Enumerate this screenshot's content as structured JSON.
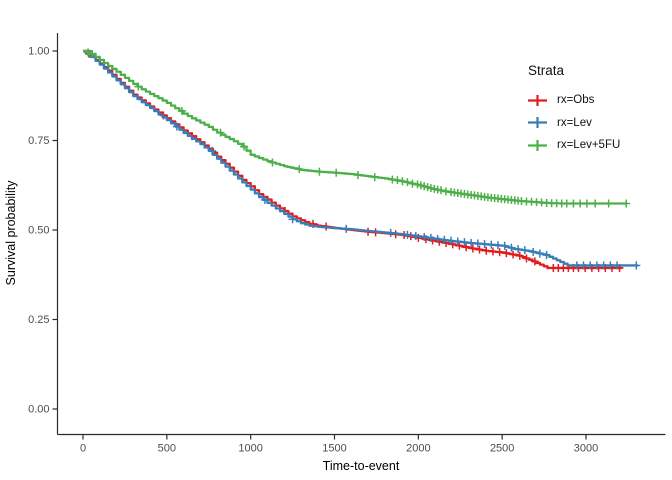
{
  "chart_data": {
    "type": "line",
    "subtype": "kaplan-meier-step",
    "title": "",
    "xlabel": "Time-to-event",
    "ylabel": "Survival probability",
    "xlim": [
      0,
      3400
    ],
    "ylim": [
      0,
      1
    ],
    "grid": false,
    "legend_position": "top-right",
    "legend_title": "Strata",
    "x_ticks": [
      0,
      500,
      1000,
      1500,
      2000,
      2500,
      3000
    ],
    "y_ticks": {
      "labels": [
        "0.00",
        "0.25",
        "0.50",
        "0.75",
        "1.00"
      ],
      "values": [
        0,
        0.25,
        0.5,
        0.75,
        1.0
      ]
    },
    "axis_color": "#2b2b2b",
    "series": [
      {
        "id": "obs",
        "name": "rx=Obs",
        "color": "#E41A1C",
        "points": [
          [
            0,
            1.0
          ],
          [
            50,
            0.985
          ],
          [
            100,
            0.965
          ],
          [
            150,
            0.945
          ],
          [
            200,
            0.922
          ],
          [
            250,
            0.9
          ],
          [
            300,
            0.878
          ],
          [
            350,
            0.862
          ],
          [
            400,
            0.845
          ],
          [
            450,
            0.828
          ],
          [
            500,
            0.812
          ],
          [
            550,
            0.795
          ],
          [
            600,
            0.778
          ],
          [
            650,
            0.762
          ],
          [
            700,
            0.745
          ],
          [
            750,
            0.727
          ],
          [
            800,
            0.705
          ],
          [
            850,
            0.685
          ],
          [
            900,
            0.663
          ],
          [
            950,
            0.64
          ],
          [
            1000,
            0.622
          ],
          [
            1050,
            0.6
          ],
          [
            1100,
            0.585
          ],
          [
            1150,
            0.568
          ],
          [
            1200,
            0.553
          ],
          [
            1250,
            0.538
          ],
          [
            1300,
            0.527
          ],
          [
            1350,
            0.517
          ],
          [
            1400,
            0.512
          ],
          [
            1500,
            0.506
          ],
          [
            1600,
            0.5
          ],
          [
            1700,
            0.495
          ],
          [
            1800,
            0.491
          ],
          [
            1900,
            0.486
          ],
          [
            2000,
            0.478
          ],
          [
            2100,
            0.469
          ],
          [
            2200,
            0.46
          ],
          [
            2300,
            0.45
          ],
          [
            2400,
            0.442
          ],
          [
            2500,
            0.437
          ],
          [
            2600,
            0.428
          ],
          [
            2660,
            0.417
          ],
          [
            2770,
            0.394
          ],
          [
            3215,
            0.394
          ]
        ],
        "censor_times": [
          35,
          480,
          650,
          1205,
          1372,
          1450,
          1700,
          1745,
          1865,
          1915,
          1955,
          2000,
          2045,
          2085,
          2125,
          2165,
          2205,
          2245,
          2285,
          2325,
          2365,
          2405,
          2445,
          2485,
          2525,
          2565,
          2605,
          2645,
          2695,
          2805,
          2835,
          2865,
          2895,
          2925,
          2955,
          2995,
          3035,
          3075,
          3115,
          3155,
          3200
        ]
      },
      {
        "id": "lev",
        "name": "rx=Lev",
        "color": "#377EB8",
        "points": [
          [
            0,
            1.0
          ],
          [
            50,
            0.983
          ],
          [
            100,
            0.962
          ],
          [
            150,
            0.94
          ],
          [
            200,
            0.918
          ],
          [
            250,
            0.896
          ],
          [
            300,
            0.874
          ],
          [
            350,
            0.857
          ],
          [
            400,
            0.841
          ],
          [
            450,
            0.823
          ],
          [
            500,
            0.807
          ],
          [
            550,
            0.789
          ],
          [
            600,
            0.771
          ],
          [
            650,
            0.755
          ],
          [
            700,
            0.74
          ],
          [
            750,
            0.721
          ],
          [
            800,
            0.699
          ],
          [
            850,
            0.677
          ],
          [
            900,
            0.655
          ],
          [
            950,
            0.633
          ],
          [
            1000,
            0.613
          ],
          [
            1050,
            0.592
          ],
          [
            1100,
            0.576
          ],
          [
            1150,
            0.56
          ],
          [
            1200,
            0.545
          ],
          [
            1250,
            0.53
          ],
          [
            1300,
            0.519
          ],
          [
            1350,
            0.512
          ],
          [
            1400,
            0.509
          ],
          [
            1500,
            0.505
          ],
          [
            1600,
            0.502
          ],
          [
            1700,
            0.497
          ],
          [
            1800,
            0.493
          ],
          [
            1900,
            0.488
          ],
          [
            2000,
            0.482
          ],
          [
            2100,
            0.475
          ],
          [
            2200,
            0.469
          ],
          [
            2300,
            0.464
          ],
          [
            2400,
            0.46
          ],
          [
            2500,
            0.456
          ],
          [
            2560,
            0.448
          ],
          [
            2660,
            0.441
          ],
          [
            2760,
            0.43
          ],
          [
            2890,
            0.401
          ],
          [
            3310,
            0.401
          ]
        ],
        "censor_times": [
          45,
          560,
          770,
          1085,
          1250,
          1570,
          1835,
          1935,
          1985,
          2035,
          2075,
          2115,
          2155,
          2195,
          2235,
          2275,
          2315,
          2355,
          2395,
          2435,
          2475,
          2515,
          2555,
          2595,
          2635,
          2685,
          2725,
          2765,
          2945,
          2985,
          3025,
          3065,
          3105,
          3145,
          3185,
          3300
        ]
      },
      {
        "id": "lev5fu",
        "name": "rx=Lev+5FU",
        "color": "#4DAF4A",
        "points": [
          [
            0,
            1.0
          ],
          [
            50,
            0.992
          ],
          [
            100,
            0.975
          ],
          [
            150,
            0.958
          ],
          [
            200,
            0.942
          ],
          [
            250,
            0.925
          ],
          [
            300,
            0.908
          ],
          [
            350,
            0.893
          ],
          [
            400,
            0.88
          ],
          [
            450,
            0.868
          ],
          [
            500,
            0.855
          ],
          [
            550,
            0.84
          ],
          [
            600,
            0.825
          ],
          [
            650,
            0.812
          ],
          [
            700,
            0.8
          ],
          [
            750,
            0.788
          ],
          [
            800,
            0.772
          ],
          [
            850,
            0.76
          ],
          [
            900,
            0.748
          ],
          [
            950,
            0.733
          ],
          [
            1000,
            0.71
          ],
          [
            1050,
            0.701
          ],
          [
            1100,
            0.692
          ],
          [
            1150,
            0.685
          ],
          [
            1200,
            0.678
          ],
          [
            1300,
            0.668
          ],
          [
            1400,
            0.663
          ],
          [
            1500,
            0.66
          ],
          [
            1600,
            0.656
          ],
          [
            1700,
            0.65
          ],
          [
            1800,
            0.644
          ],
          [
            1900,
            0.636
          ],
          [
            2000,
            0.625
          ],
          [
            2060,
            0.617
          ],
          [
            2120,
            0.611
          ],
          [
            2180,
            0.606
          ],
          [
            2240,
            0.602
          ],
          [
            2300,
            0.598
          ],
          [
            2360,
            0.594
          ],
          [
            2420,
            0.59
          ],
          [
            2480,
            0.587
          ],
          [
            2540,
            0.584
          ],
          [
            2600,
            0.581
          ],
          [
            2660,
            0.579
          ],
          [
            2720,
            0.577
          ],
          [
            2780,
            0.575
          ],
          [
            2850,
            0.574
          ],
          [
            3240,
            0.574
          ]
        ],
        "censor_times": [
          30,
          55,
          330,
          590,
          820,
          960,
          1130,
          1290,
          1410,
          1510,
          1640,
          1740,
          1845,
          1875,
          1905,
          1935,
          1965,
          1995,
          2015,
          2035,
          2055,
          2075,
          2095,
          2115,
          2135,
          2165,
          2195,
          2215,
          2235,
          2255,
          2275,
          2295,
          2315,
          2335,
          2355,
          2375,
          2395,
          2415,
          2435,
          2455,
          2475,
          2495,
          2515,
          2535,
          2555,
          2575,
          2595,
          2615,
          2645,
          2675,
          2705,
          2735,
          2765,
          2795,
          2825,
          2855,
          2885,
          2925,
          2965,
          3005,
          3055,
          3135,
          3240
        ]
      }
    ]
  }
}
